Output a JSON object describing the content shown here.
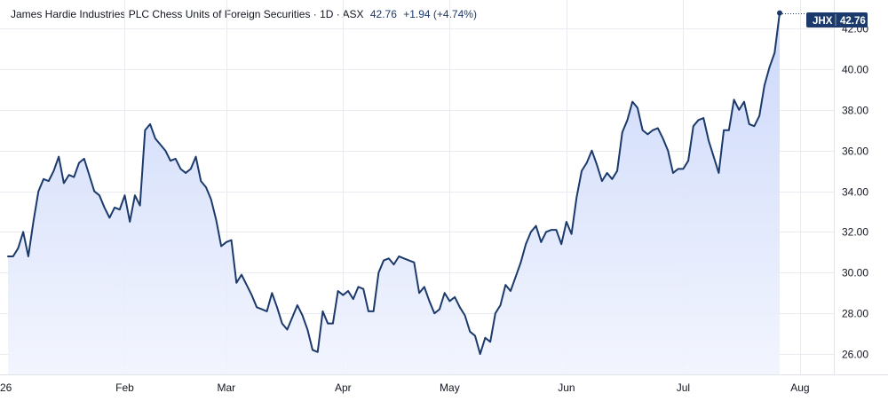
{
  "legend": {
    "title": "James Hardie Industries PLC Chess Units of Foreign Securities · 1D · ASX",
    "last": "42.76",
    "change": "+1.94 (+4.74%)"
  },
  "badge": {
    "symbol": "JHX",
    "price": "42.76"
  },
  "colors": {
    "line": "#1b3a6b",
    "fill_top": "#c9d6fa",
    "fill_bottom": "#f1f4fe",
    "badge_bg": "#1b3a6b",
    "grid": "#e9ebf0"
  },
  "chart_data": {
    "type": "area",
    "title": "James Hardie Industries PLC Chess Units of Foreign Securities · 1D · ASX",
    "ylim": [
      25.0,
      43.4
    ],
    "y_ticks": [
      "26.00",
      "28.00",
      "30.00",
      "32.00",
      "34.00",
      "36.00",
      "38.00",
      "40.00",
      "42.00"
    ],
    "x_ticks": [
      {
        "label": "26",
        "x": 0
      },
      {
        "label": "Feb",
        "x": 23
      },
      {
        "label": "Mar",
        "x": 43
      },
      {
        "label": "Apr",
        "x": 66
      },
      {
        "label": "May",
        "x": 87
      },
      {
        "label": "Jun",
        "x": 110
      },
      {
        "label": "Jul",
        "x": 133
      },
      {
        "label": "Aug",
        "x": 156
      }
    ],
    "x_range": [
      -0.5,
      171
    ],
    "series": [
      {
        "values": [
          30.8,
          30.8,
          31.2,
          32.0,
          30.8,
          32.5,
          34.0,
          34.6,
          34.5,
          35.0,
          35.7,
          34.4,
          34.8,
          34.7,
          35.4,
          35.6,
          34.8,
          34.0,
          33.8,
          33.2,
          32.7,
          33.2,
          33.1,
          33.8,
          32.5,
          33.8,
          33.3,
          37.0,
          37.3,
          36.6,
          36.3,
          36.0,
          35.5,
          35.6,
          35.1,
          34.9,
          35.1,
          35.7,
          34.5,
          34.2,
          33.6,
          32.6,
          31.3,
          31.5,
          31.6,
          29.5,
          29.9,
          29.4,
          28.9,
          28.3,
          28.2,
          28.1,
          29.0,
          28.3,
          27.5,
          27.2,
          27.8,
          28.4,
          27.9,
          27.2,
          26.2,
          26.1,
          28.1,
          27.5,
          27.5,
          29.1,
          28.9,
          29.1,
          28.7,
          29.3,
          29.2,
          28.1,
          28.1,
          30.0,
          30.6,
          30.7,
          30.4,
          30.8,
          30.7,
          30.6,
          30.5,
          29.0,
          29.3,
          28.6,
          28.0,
          28.2,
          29.0,
          28.6,
          28.8,
          28.3,
          27.9,
          27.1,
          26.9,
          26.0,
          26.8,
          26.6,
          28.0,
          28.4,
          29.4,
          29.1,
          29.8,
          30.5,
          31.4,
          32.0,
          32.3,
          31.5,
          32.0,
          32.1,
          32.1,
          31.4,
          32.5,
          31.9,
          33.7,
          35.0,
          35.4,
          36.0,
          35.3,
          34.5,
          34.9,
          34.6,
          35.0,
          36.9,
          37.5,
          38.4,
          38.1,
          37.0,
          36.8,
          37.0,
          37.1,
          36.6,
          36.0,
          34.9,
          35.1,
          35.1,
          35.5,
          37.2,
          37.5,
          37.6,
          36.5,
          35.7,
          34.9,
          37.0,
          37.0,
          38.5,
          38.0,
          38.4,
          37.3,
          37.2,
          37.7,
          39.2,
          40.1,
          40.8,
          42.76
        ]
      }
    ]
  }
}
